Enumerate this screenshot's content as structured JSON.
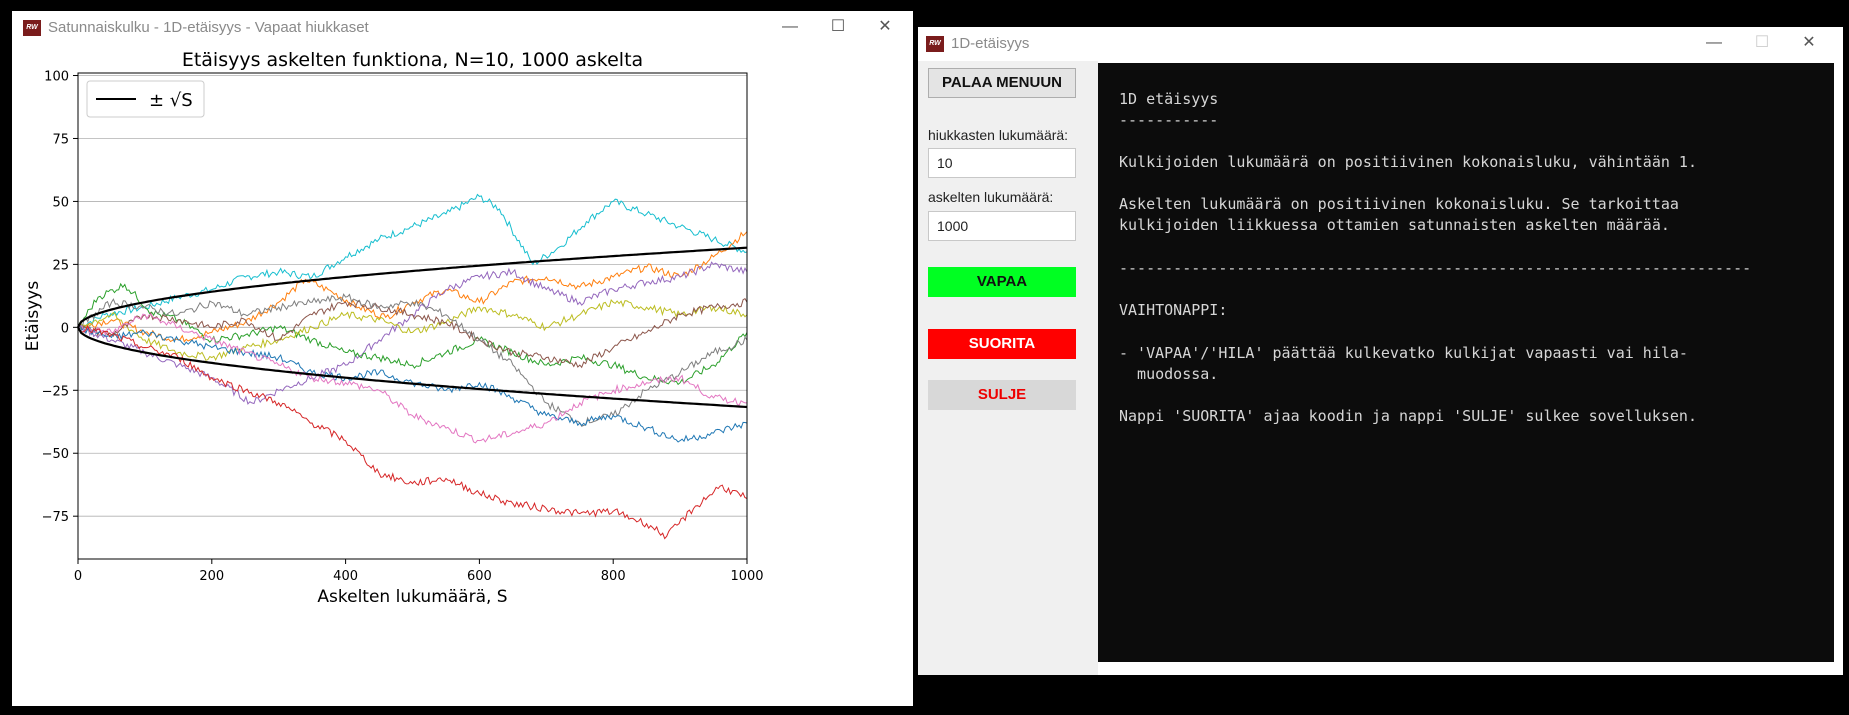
{
  "plot_window": {
    "title": "Satunnaiskulku - 1D-etäisyys - Vapaat hiukkaset",
    "icon_text": "RW",
    "minimize": "—",
    "maximize": "☐",
    "close": "✕"
  },
  "control_window": {
    "title": "1D-etäisyys",
    "icon_text": "RW",
    "minimize": "—",
    "maximize": "☐",
    "close": "✕",
    "back_button": "PALAA MENUUN",
    "particles_label": "hiukkasten lukumäärä:",
    "particles_value": "10",
    "steps_label": "askelten lukumäärä:",
    "steps_value": "1000",
    "free_button": "VAPAA",
    "free_color": "#00ff22",
    "run_button": "SUORITA",
    "run_color": "#ff0000",
    "close_button": "SULJE",
    "console_lines": [
      "1D etäisyys",
      "-----------",
      "Kulkijoiden lukumäärä on positiivinen kokonaisluku, vähintään 1.",
      "Askelten lukumäärä on positiivinen kokonaisluku. Se tarkoittaa",
      "kulkijoiden liikkuessa ottamien satunnaisten askelten määrää.",
      "----------------------------------------------------------------------",
      "VAIHTONAPPI:",
      "- 'VAPAA'/'HILA' päättää kulkevatko kulkijat vapaasti vai hila-",
      "  muodossa.",
      "Nappi 'SUORITA' ajaa koodin ja nappi 'SULJE' sulkee sovelluksen."
    ]
  },
  "chart_data": {
    "type": "line",
    "title": "Etäisyys askelten funktiona, N=10, 1000 askelta",
    "xlabel": "Askelten lukumäärä, S",
    "ylabel": "Etäisyys",
    "xlim": [
      0,
      1000
    ],
    "ylim": [
      -92,
      101
    ],
    "xticks": [
      0,
      200,
      400,
      600,
      800,
      1000
    ],
    "yticks": [
      100,
      75,
      50,
      25,
      0,
      -25,
      -50,
      -75
    ],
    "grid": "horizontal",
    "legend": {
      "placement": "top-left",
      "entries": [
        "± √S"
      ]
    },
    "envelope": {
      "name": "± √S",
      "color": "#000000",
      "function": "±sqrt(S)"
    },
    "series": [
      {
        "color": "#17becf",
        "points": [
          [
            0,
            0
          ],
          [
            40,
            5
          ],
          [
            100,
            8
          ],
          [
            150,
            12
          ],
          [
            200,
            15
          ],
          [
            250,
            20
          ],
          [
            300,
            22
          ],
          [
            350,
            20
          ],
          [
            400,
            28
          ],
          [
            450,
            35
          ],
          [
            500,
            40
          ],
          [
            550,
            45
          ],
          [
            600,
            52
          ],
          [
            630,
            47
          ],
          [
            680,
            25
          ],
          [
            720,
            32
          ],
          [
            760,
            42
          ],
          [
            800,
            50
          ],
          [
            850,
            45
          ],
          [
            900,
            40
          ],
          [
            950,
            35
          ],
          [
            1000,
            30
          ]
        ]
      },
      {
        "color": "#ff7f0e",
        "points": [
          [
            0,
            0
          ],
          [
            50,
            3
          ],
          [
            100,
            -2
          ],
          [
            150,
            -5
          ],
          [
            200,
            -2
          ],
          [
            250,
            2
          ],
          [
            300,
            10
          ],
          [
            340,
            19
          ],
          [
            380,
            14
          ],
          [
            420,
            8
          ],
          [
            460,
            4
          ],
          [
            500,
            10
          ],
          [
            550,
            15
          ],
          [
            600,
            10
          ],
          [
            650,
            18
          ],
          [
            700,
            20
          ],
          [
            750,
            16
          ],
          [
            800,
            20
          ],
          [
            850,
            24
          ],
          [
            900,
            20
          ],
          [
            950,
            28
          ],
          [
            1000,
            38
          ]
        ]
      },
      {
        "color": "#9467bd",
        "points": [
          [
            0,
            0
          ],
          [
            50,
            -5
          ],
          [
            100,
            -10
          ],
          [
            150,
            -15
          ],
          [
            200,
            -20
          ],
          [
            260,
            -30
          ],
          [
            300,
            -25
          ],
          [
            350,
            -20
          ],
          [
            400,
            -15
          ],
          [
            450,
            -5
          ],
          [
            500,
            5
          ],
          [
            550,
            15
          ],
          [
            600,
            20
          ],
          [
            650,
            22
          ],
          [
            700,
            15
          ],
          [
            750,
            10
          ],
          [
            800,
            15
          ],
          [
            850,
            18
          ],
          [
            900,
            20
          ],
          [
            950,
            25
          ],
          [
            1000,
            22
          ]
        ]
      },
      {
        "color": "#2ca02c",
        "points": [
          [
            0,
            0
          ],
          [
            30,
            12
          ],
          [
            70,
            17
          ],
          [
            110,
            6
          ],
          [
            150,
            3
          ],
          [
            200,
            -5
          ],
          [
            250,
            -3
          ],
          [
            300,
            0
          ],
          [
            350,
            -5
          ],
          [
            400,
            -10
          ],
          [
            450,
            -12
          ],
          [
            500,
            -15
          ],
          [
            550,
            -10
          ],
          [
            600,
            -5
          ],
          [
            650,
            -10
          ],
          [
            700,
            -15
          ],
          [
            750,
            -12
          ],
          [
            800,
            -15
          ],
          [
            850,
            -20
          ],
          [
            900,
            -22
          ],
          [
            950,
            -15
          ],
          [
            1000,
            -2
          ]
        ]
      },
      {
        "color": "#bcbd22",
        "points": [
          [
            0,
            0
          ],
          [
            50,
            5
          ],
          [
            100,
            -5
          ],
          [
            150,
            -10
          ],
          [
            200,
            -12
          ],
          [
            250,
            -8
          ],
          [
            300,
            -5
          ],
          [
            350,
            0
          ],
          [
            400,
            5
          ],
          [
            450,
            3
          ],
          [
            500,
            -2
          ],
          [
            550,
            2
          ],
          [
            600,
            8
          ],
          [
            650,
            5
          ],
          [
            700,
            0
          ],
          [
            750,
            5
          ],
          [
            800,
            10
          ],
          [
            850,
            8
          ],
          [
            900,
            5
          ],
          [
            950,
            8
          ],
          [
            1000,
            5
          ]
        ]
      },
      {
        "color": "#8c564b",
        "points": [
          [
            0,
            0
          ],
          [
            50,
            -3
          ],
          [
            100,
            5
          ],
          [
            150,
            3
          ],
          [
            200,
            0
          ],
          [
            250,
            3
          ],
          [
            300,
            -5
          ],
          [
            350,
            5
          ],
          [
            400,
            10
          ],
          [
            450,
            8
          ],
          [
            500,
            5
          ],
          [
            550,
            2
          ],
          [
            600,
            -5
          ],
          [
            650,
            -10
          ],
          [
            700,
            -12
          ],
          [
            750,
            -15
          ],
          [
            800,
            -8
          ],
          [
            850,
            -2
          ],
          [
            900,
            5
          ],
          [
            950,
            8
          ],
          [
            1000,
            10
          ]
        ]
      },
      {
        "color": "#7f7f7f",
        "points": [
          [
            0,
            0
          ],
          [
            50,
            10
          ],
          [
            100,
            8
          ],
          [
            150,
            5
          ],
          [
            200,
            10
          ],
          [
            250,
            5
          ],
          [
            300,
            8
          ],
          [
            350,
            10
          ],
          [
            400,
            12
          ],
          [
            450,
            8
          ],
          [
            500,
            10
          ],
          [
            550,
            5
          ],
          [
            600,
            -5
          ],
          [
            650,
            -15
          ],
          [
            700,
            -30
          ],
          [
            750,
            -38
          ],
          [
            800,
            -35
          ],
          [
            850,
            -25
          ],
          [
            900,
            -18
          ],
          [
            950,
            -10
          ],
          [
            1000,
            -5
          ]
        ]
      },
      {
        "color": "#1f77b4",
        "points": [
          [
            0,
            0
          ],
          [
            50,
            -4
          ],
          [
            100,
            -2
          ],
          [
            150,
            -5
          ],
          [
            200,
            -8
          ],
          [
            250,
            -10
          ],
          [
            300,
            -12
          ],
          [
            350,
            -18
          ],
          [
            400,
            -20
          ],
          [
            450,
            -18
          ],
          [
            500,
            -22
          ],
          [
            550,
            -25
          ],
          [
            600,
            -22
          ],
          [
            650,
            -28
          ],
          [
            700,
            -35
          ],
          [
            750,
            -38
          ],
          [
            800,
            -35
          ],
          [
            850,
            -40
          ],
          [
            900,
            -45
          ],
          [
            950,
            -42
          ],
          [
            1000,
            -38
          ]
        ]
      },
      {
        "color": "#e377c2",
        "points": [
          [
            0,
            0
          ],
          [
            50,
            -2
          ],
          [
            100,
            5
          ],
          [
            150,
            0
          ],
          [
            200,
            -5
          ],
          [
            250,
            -10
          ],
          [
            300,
            -15
          ],
          [
            350,
            -20
          ],
          [
            400,
            -22
          ],
          [
            450,
            -25
          ],
          [
            500,
            -35
          ],
          [
            550,
            -40
          ],
          [
            600,
            -45
          ],
          [
            650,
            -42
          ],
          [
            700,
            -38
          ],
          [
            750,
            -30
          ],
          [
            800,
            -25
          ],
          [
            850,
            -22
          ],
          [
            900,
            -20
          ],
          [
            950,
            -28
          ],
          [
            1000,
            -30
          ]
        ]
      },
      {
        "color": "#d62728",
        "points": [
          [
            0,
            0
          ],
          [
            50,
            -3
          ],
          [
            100,
            -8
          ],
          [
            150,
            -12
          ],
          [
            200,
            -20
          ],
          [
            250,
            -25
          ],
          [
            300,
            -30
          ],
          [
            350,
            -38
          ],
          [
            400,
            -45
          ],
          [
            450,
            -58
          ],
          [
            500,
            -62
          ],
          [
            550,
            -60
          ],
          [
            600,
            -66
          ],
          [
            650,
            -70
          ],
          [
            700,
            -72
          ],
          [
            750,
            -74
          ],
          [
            800,
            -73
          ],
          [
            850,
            -78
          ],
          [
            880,
            -83
          ],
          [
            920,
            -72
          ],
          [
            960,
            -63
          ],
          [
            1000,
            -68
          ]
        ]
      }
    ]
  }
}
